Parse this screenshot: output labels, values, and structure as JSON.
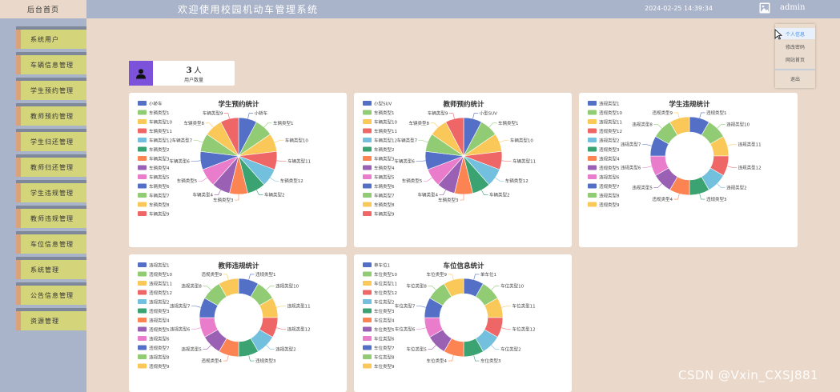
{
  "header": {
    "home_tab": "后台首页",
    "title": "欢迎使用校园机动车管理系统",
    "datetime": "2024-02-25 14:39:34",
    "username": "admin"
  },
  "sidebar": {
    "items": [
      {
        "label": "系统用户"
      },
      {
        "label": "车辆信息管理"
      },
      {
        "label": "学生预约管理"
      },
      {
        "label": "教师预约管理"
      },
      {
        "label": "学生归还管理"
      },
      {
        "label": "教师归还管理"
      },
      {
        "label": "学生违规管理"
      },
      {
        "label": "教师违规管理"
      },
      {
        "label": "车位信息管理"
      },
      {
        "label": "系统管理"
      },
      {
        "label": "公告信息管理"
      },
      {
        "label": "资源管理"
      }
    ]
  },
  "user_menu": {
    "items": [
      {
        "label": "个人信息"
      },
      {
        "label": "修改密码"
      },
      {
        "label": "网站首页"
      },
      {
        "label": "退出"
      }
    ]
  },
  "stat": {
    "value": "3",
    "unit": "人",
    "label": "用户数量"
  },
  "colors": [
    "#5470c6",
    "#91cc75",
    "#fac858",
    "#ee6666",
    "#73c0de",
    "#3ba272",
    "#fc8452",
    "#9a60b4",
    "#ea7ccc"
  ],
  "chart_data": [
    {
      "type": "pie",
      "title": "学生预约统计",
      "categories": [
        "小轿车",
        "车辆类型1",
        "车辆类型10",
        "车辆类型11",
        "车辆类型12",
        "车辆类型2",
        "车辆类型3",
        "车辆类型4",
        "车辆类型5",
        "车辆类型6",
        "车辆类型7",
        "车辆类型8",
        "车辆类型9"
      ],
      "values": [
        1,
        1,
        1,
        1,
        1,
        1,
        1,
        1,
        1,
        1,
        1,
        1,
        1
      ],
      "legend": "left"
    },
    {
      "type": "pie",
      "title": "教师预约统计",
      "categories": [
        "小型SUV",
        "车辆类型1",
        "车辆类型10",
        "车辆类型11",
        "车辆类型12",
        "车辆类型2",
        "车辆类型3",
        "车辆类型4",
        "车辆类型5",
        "车辆类型6",
        "车辆类型7",
        "车辆类型8",
        "车辆类型9"
      ],
      "values": [
        1,
        1,
        1,
        1,
        1,
        1,
        1,
        1,
        1,
        1,
        1,
        1,
        1
      ],
      "legend": "left"
    },
    {
      "type": "pie",
      "donut": true,
      "title": "学生违规统计",
      "categories": [
        "违规类型1",
        "违规类型10",
        "违规类型11",
        "违规类型12",
        "违规类型2",
        "违规类型3",
        "违规类型4",
        "违规类型5",
        "违规类型6",
        "违规类型7",
        "违规类型8",
        "违规类型9"
      ],
      "values": [
        1,
        1,
        1,
        1,
        1,
        1,
        1,
        1,
        1,
        1,
        1,
        1
      ],
      "legend": "left"
    },
    {
      "type": "pie",
      "donut": true,
      "title": "教师违规统计",
      "categories": [
        "违规类型1",
        "违规类型10",
        "违规类型11",
        "违规类型12",
        "违规类型2",
        "违规类型3",
        "违规类型4",
        "违规类型5",
        "违规类型6",
        "违规类型7",
        "违规类型8",
        "违规类型9"
      ],
      "values": [
        1,
        1,
        1,
        1,
        1,
        1,
        1,
        1,
        1,
        1,
        1,
        1
      ],
      "legend": "left"
    },
    {
      "type": "pie",
      "donut": true,
      "title": "车位信息统计",
      "categories": [
        "单车位1",
        "车位类型10",
        "车位类型11",
        "车位类型12",
        "车位类型2",
        "车位类型3",
        "车位类型4",
        "车位类型5",
        "车位类型6",
        "车位类型7",
        "车位类型8",
        "车位类型9"
      ],
      "values": [
        1,
        1,
        1,
        1,
        1,
        1,
        1,
        1,
        1,
        1,
        1,
        1
      ],
      "legend": "left"
    }
  ],
  "watermark": "CSDN @Vxin_CXSJ881"
}
